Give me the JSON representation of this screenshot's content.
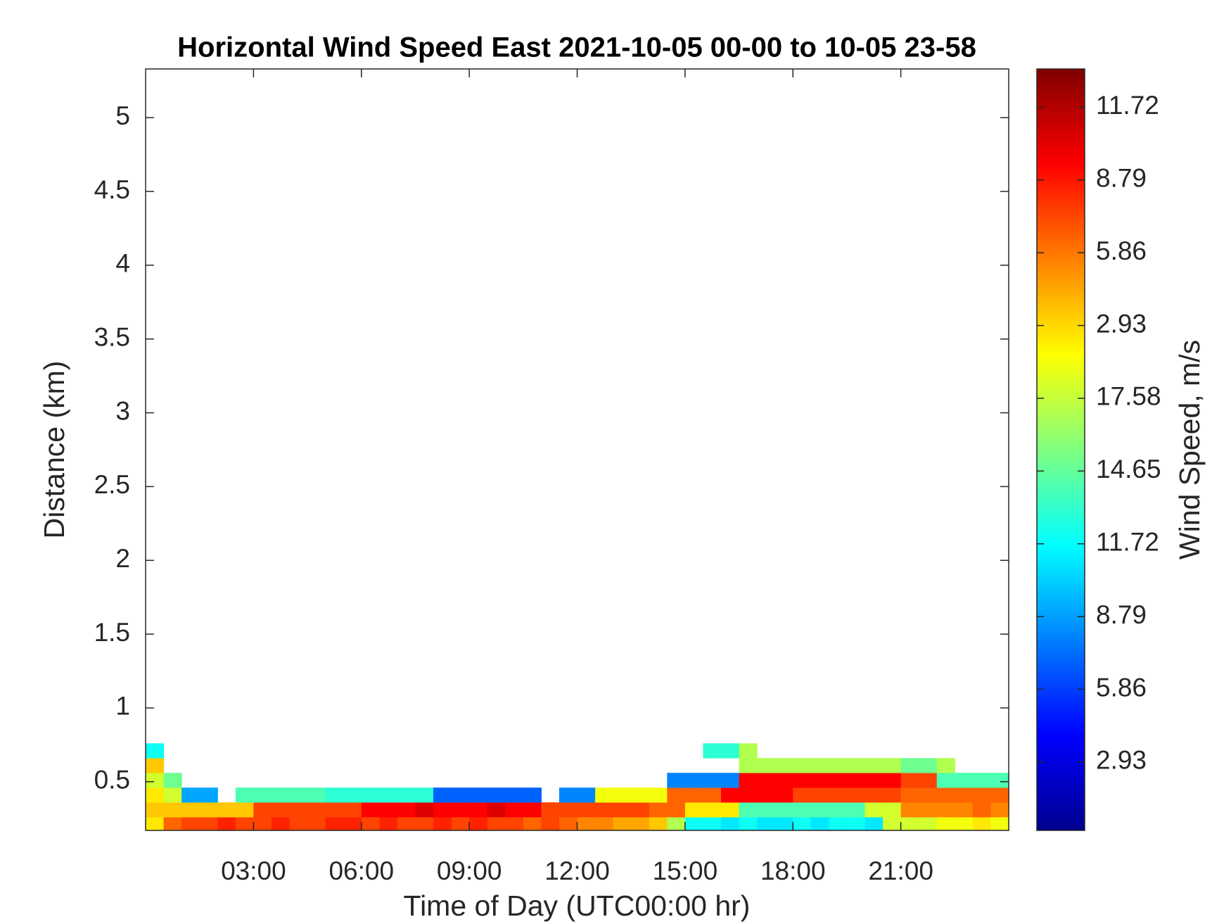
{
  "chart_data": {
    "type": "heatmap",
    "title": "Horizontal Wind Speed East 2021-10-05 00-00 to 10-05 23-58",
    "x_label": "Time of Day (UTC00:00 hr)",
    "y_label": "Distance (km)",
    "colorbar_label": "Wind Speed, m/s",
    "colormap": "jet",
    "xlim": [
      0,
      24
    ],
    "xticks": [
      {
        "value": 3,
        "label": "03:00"
      },
      {
        "value": 6,
        "label": "06:00"
      },
      {
        "value": 9,
        "label": "09:00"
      },
      {
        "value": 12,
        "label": "12:00"
      },
      {
        "value": 15,
        "label": "15:00"
      },
      {
        "value": 18,
        "label": "18:00"
      },
      {
        "value": 21,
        "label": "21:00"
      }
    ],
    "ylim": [
      0.17,
      5.33
    ],
    "yticks": [
      0.5,
      1,
      1.5,
      2,
      2.5,
      3,
      3.5,
      4,
      4.5,
      5
    ],
    "clim": [
      0.18,
      30.84
    ],
    "cticks": [
      2.93,
      5.86,
      8.79,
      11.72,
      14.65,
      17.58,
      {
        "value": 20.51,
        "label": "2.93"
      },
      {
        "value": 23.44,
        "label": "5.86"
      },
      {
        "value": 26.37,
        "label": "8.79"
      },
      {
        "value": 29.3,
        "label": "11.72"
      }
    ],
    "x_edges": [
      0,
      0.5,
      1,
      1.5,
      2,
      2.5,
      3,
      3.5,
      4,
      4.5,
      5,
      5.5,
      6,
      6.5,
      7,
      7.5,
      8,
      8.5,
      9,
      9.5,
      10,
      10.5,
      11,
      11.5,
      12,
      12.5,
      13,
      13.5,
      14,
      14.5,
      15,
      15.5,
      16,
      16.5,
      17,
      17.5,
      18,
      18.5,
      19,
      19.5,
      20,
      20.5,
      21,
      21.5,
      22,
      22.5,
      23,
      23.5,
      24
    ],
    "y_edges": [
      0.17,
      0.26,
      0.36,
      0.46,
      0.56,
      0.66,
      0.76
    ],
    "z": [
      [
        20,
        24,
        25,
        25,
        26,
        25,
        25,
        26,
        25,
        25,
        26,
        26,
        25,
        26,
        25,
        25,
        26,
        25,
        26,
        25,
        25,
        24,
        25,
        24,
        23,
        23,
        22,
        22,
        21,
        17,
        12,
        12,
        11,
        12,
        11,
        11,
        12,
        11,
        12,
        12,
        11,
        18,
        18,
        18,
        19,
        19,
        20,
        19
      ],
      [
        21,
        21,
        21,
        21,
        21,
        21,
        25,
        25,
        25,
        25,
        25,
        25,
        27,
        27,
        27,
        28,
        27,
        27,
        27,
        28,
        27,
        27,
        25,
        25,
        25,
        25,
        25,
        25,
        24,
        24,
        20,
        20,
        20,
        14,
        14,
        14,
        14,
        14,
        14,
        14,
        18,
        18,
        23,
        23,
        23,
        23,
        24,
        23
      ],
      [
        20,
        18,
        9,
        9,
        null,
        14,
        14,
        14,
        14,
        14,
        13,
        13,
        13,
        13,
        13,
        13,
        7,
        7,
        7,
        7,
        7,
        7,
        null,
        8,
        8,
        19,
        19,
        19,
        19,
        24,
        24,
        24,
        27,
        27,
        27,
        27,
        25,
        25,
        25,
        25,
        25,
        25,
        24,
        24,
        24,
        24,
        24,
        24
      ],
      [
        18,
        15,
        null,
        null,
        null,
        null,
        null,
        null,
        null,
        null,
        null,
        null,
        null,
        null,
        null,
        null,
        null,
        null,
        null,
        null,
        null,
        null,
        null,
        null,
        null,
        null,
        null,
        null,
        null,
        8,
        8,
        8,
        8,
        27,
        27,
        27,
        27,
        27,
        27,
        27,
        27,
        27,
        25,
        25,
        14,
        14,
        14,
        14
      ],
      [
        21,
        null,
        null,
        null,
        null,
        null,
        null,
        null,
        null,
        null,
        null,
        null,
        null,
        null,
        null,
        null,
        null,
        null,
        null,
        null,
        null,
        null,
        null,
        null,
        null,
        null,
        null,
        null,
        null,
        null,
        null,
        null,
        null,
        17,
        17,
        17,
        17,
        17,
        17,
        17,
        17,
        17,
        15,
        15,
        17,
        null,
        null,
        null
      ],
      [
        12,
        null,
        null,
        null,
        null,
        null,
        null,
        null,
        null,
        null,
        null,
        null,
        null,
        null,
        null,
        null,
        null,
        null,
        null,
        null,
        null,
        null,
        null,
        null,
        null,
        null,
        null,
        null,
        null,
        null,
        null,
        13,
        13,
        17,
        null,
        null,
        null,
        null,
        null,
        null,
        null,
        null,
        null,
        null,
        null,
        null,
        null,
        null
      ]
    ]
  }
}
